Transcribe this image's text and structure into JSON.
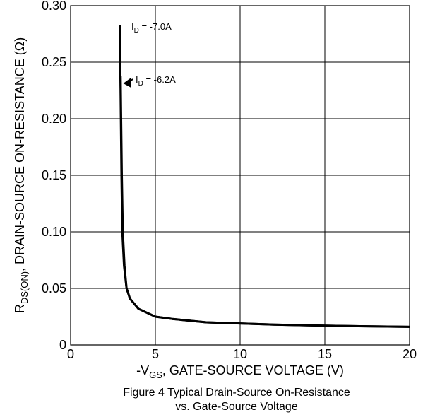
{
  "chart_data": {
    "type": "line",
    "x_axis": {
      "min": 0,
      "max": 20,
      "ticks": [
        0,
        5,
        10,
        15,
        20
      ],
      "tick_labels": [
        "0",
        "5",
        "10",
        "15",
        "20"
      ],
      "label_main": "-V",
      "label_sub": "GS",
      "label_rest": ", GATE-SOURCE VOLTAGE (V)"
    },
    "y_axis": {
      "min": 0,
      "max": 0.3,
      "ticks": [
        0,
        0.05,
        0.1,
        0.15,
        0.2,
        0.25,
        0.3
      ],
      "tick_labels": [
        "0",
        "0.05",
        "0.10",
        "0.15",
        "0.20",
        "0.25",
        "0.30"
      ],
      "label_main": "R",
      "label_sub": "DS(ON)",
      "label_rest": ", DRAIN-SOURCE ON-RESISTANCE (Ω)"
    },
    "grid": true,
    "series": [
      {
        "name": "I_D = -7.0A",
        "points": [
          [
            2.9,
            0.283
          ],
          [
            2.95,
            0.22
          ],
          [
            3.0,
            0.15
          ],
          [
            3.05,
            0.1
          ],
          [
            3.15,
            0.07
          ],
          [
            3.3,
            0.05
          ],
          [
            3.5,
            0.041
          ],
          [
            4.0,
            0.032
          ],
          [
            5.0,
            0.025
          ],
          [
            6.0,
            0.023
          ],
          [
            8.0,
            0.02
          ],
          [
            10.0,
            0.019
          ],
          [
            12.0,
            0.018
          ],
          [
            15.0,
            0.017
          ],
          [
            20.0,
            0.016
          ]
        ]
      },
      {
        "name": "I_D = -6.2A",
        "points": [
          [
            2.95,
            0.238
          ],
          [
            2.98,
            0.2
          ],
          [
            3.02,
            0.15
          ],
          [
            3.08,
            0.1
          ],
          [
            3.18,
            0.07
          ],
          [
            3.3,
            0.05
          ],
          [
            3.5,
            0.041
          ],
          [
            4.0,
            0.032
          ],
          [
            5.0,
            0.025
          ],
          [
            6.0,
            0.023
          ],
          [
            8.0,
            0.02
          ],
          [
            10.0,
            0.019
          ],
          [
            12.0,
            0.018
          ],
          [
            15.0,
            0.017
          ],
          [
            20.0,
            0.016
          ]
        ]
      }
    ],
    "annotations": [
      {
        "main": "I",
        "sub": "D",
        "rest": " = -7.0A"
      },
      {
        "main": "I",
        "sub": "D",
        "rest": " = -6.2A"
      }
    ],
    "caption_line1": "Figure 4 Typical Drain-Source On-Resistance",
    "caption_line2": "vs. Gate-Source Voltage"
  }
}
